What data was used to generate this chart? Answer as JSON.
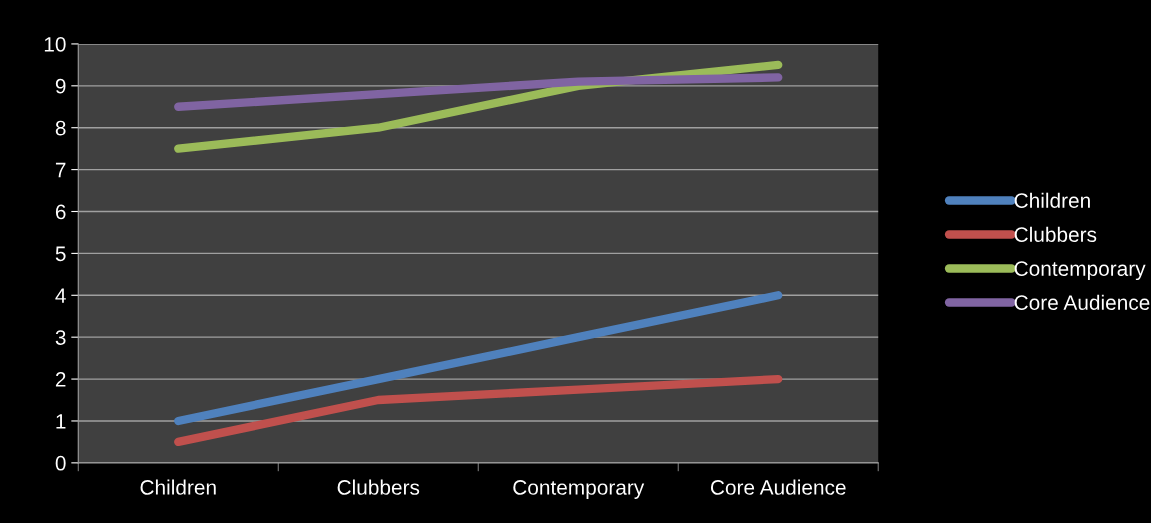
{
  "chart_data": {
    "type": "line",
    "categories": [
      "Children",
      "Clubbers",
      "Contemporary",
      "Core Audience"
    ],
    "series": [
      {
        "name": "Children",
        "color": "#4f81bd",
        "values": [
          1,
          2,
          3,
          4
        ]
      },
      {
        "name": "Clubbers",
        "color": "#c0504d",
        "values": [
          0.5,
          1.5,
          1.75,
          2
        ]
      },
      {
        "name": "Contemporary",
        "color": "#9bbb59",
        "values": [
          7.5,
          8,
          9,
          9.5
        ]
      },
      {
        "name": "Core Audience",
        "color": "#8064a2",
        "values": [
          8.5,
          8.8,
          9.1,
          9.2
        ]
      }
    ],
    "ylim": [
      0,
      10
    ],
    "yticks": [
      0,
      1,
      2,
      3,
      4,
      5,
      6,
      7,
      8,
      9,
      10
    ],
    "grid": "y",
    "legend": "right",
    "marker": "none"
  }
}
